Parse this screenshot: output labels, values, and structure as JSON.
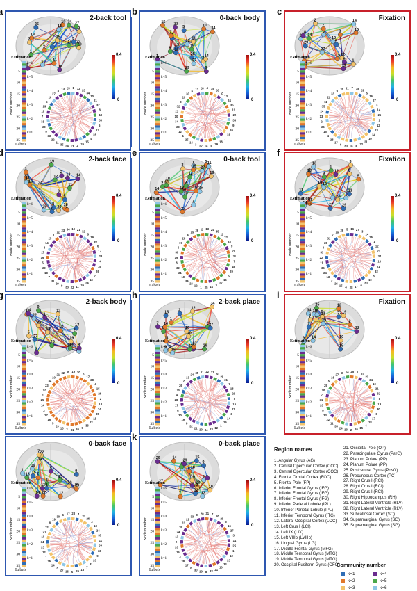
{
  "colorbar": {
    "max_label": "0.4",
    "min_label": "0",
    "colors": [
      "#0a1c8e",
      "#1560d8",
      "#21b3e6",
      "#45c66a",
      "#c8e12a",
      "#f6b923",
      "#ed3b2a",
      "#a01010"
    ]
  },
  "label_bar": {
    "title": "Estimation",
    "axis_label": "Node number",
    "bottom_label": "Labels",
    "ticks": [
      "5",
      "10",
      "15",
      "20",
      "25",
      "30",
      "35"
    ],
    "k_labels": [
      "k=6",
      "k=5",
      "k=4",
      "k=3",
      "k=2",
      "k=1"
    ]
  },
  "panels": [
    {
      "letter": "a",
      "title": "2-back tool",
      "frame": "blue"
    },
    {
      "letter": "b",
      "title": "0-back body",
      "frame": "blue"
    },
    {
      "letter": "c",
      "title": "Fixation",
      "frame": "red"
    },
    {
      "letter": "d",
      "title": "2-back face",
      "frame": "blue"
    },
    {
      "letter": "e",
      "title": "0-back tool",
      "frame": "blue"
    },
    {
      "letter": "f",
      "title": "Fixation",
      "frame": "red"
    },
    {
      "letter": "g",
      "title": "2-back body",
      "frame": "blue"
    },
    {
      "letter": "h",
      "title": "2-back place",
      "frame": "blue"
    },
    {
      "letter": "i",
      "title": "Fixation",
      "frame": "red"
    },
    {
      "letter": "j",
      "title": "0-back face",
      "frame": "blue"
    },
    {
      "letter": "k",
      "title": "0-back place",
      "frame": "blue"
    }
  ],
  "community_colors": {
    "k1": "#2f6db5",
    "k2": "#e0782b",
    "k3": "#f3c36b",
    "k4": "#6a2c8f",
    "k5": "#4aa74a",
    "k6": "#8dc6e6"
  },
  "region_names": {
    "title": "Region names",
    "col1": [
      "1. Angular Gyrus (AG)",
      "2. Central Opercular Cortex (COC)",
      "3. Central Opercular Cortex (COC)",
      "4. Frontal Orbital Cortex (FOC)",
      "5. Frontal Pole (FP)",
      "6. Inferior Frontal Gyrus (IFG)",
      "7. Inferior Frontal Gyrus (IFG)",
      "8. Inferior Frontal Gyrus (IFG)",
      "9. Inferior Parietal Lobule (IPL)",
      "10. Inferior Parietal Lobule (IPL)",
      "11. Inferior Temporal Gyrus (ITG)",
      "12. Lateral Occipital Cortex (LOC)",
      "13. Left Crus I (LCI)",
      "14. Left IX (LIX)",
      "15. Left VIIIb (LVIIIb)",
      "16. Lingual Gyrus (LG)",
      "17. Middle Frontal Gyrus (MFG)",
      "18. Middle Temporal Gyrus (MTG)",
      "19. Middle Temporal Gyrus (MTG)",
      "20. Occipital Fusiform Gyrus (OFG)"
    ],
    "col2": [
      "21. Occipital Pole (OP)",
      "22. Paracingulate Gyrus (ParG)",
      "23. Planum Polare (PP)",
      "24. Planum Polare (PP)",
      "25. Postcentral Gyrus (PosG)",
      "26. Precuneous Cortex (PC)",
      "27. Right Crus I (RCI)",
      "28. Right Crus I (RCI)",
      "29. Right Crus I (RCI)",
      "30. Right Hippocampus (RH)",
      "31. Right Lateral Ventricle (RLV)",
      "32. Right Lateral Ventricle (RLV)",
      "33. Subcallosal Cortex (SC)",
      "34. Supramarginal Gyrus (SG)",
      "35. Supramarginal Gyrus (SG)"
    ]
  },
  "community_legend": {
    "title": "Community number",
    "items": [
      {
        "label": "k=1",
        "color": "#2f6db5"
      },
      {
        "label": "k=4",
        "color": "#6a2c8f"
      },
      {
        "label": "k=2",
        "color": "#e0782b"
      },
      {
        "label": "k=5",
        "color": "#4aa74a"
      },
      {
        "label": "k=3",
        "color": "#f3c36b"
      },
      {
        "label": "k=6",
        "color": "#8dc6e6"
      }
    ]
  }
}
